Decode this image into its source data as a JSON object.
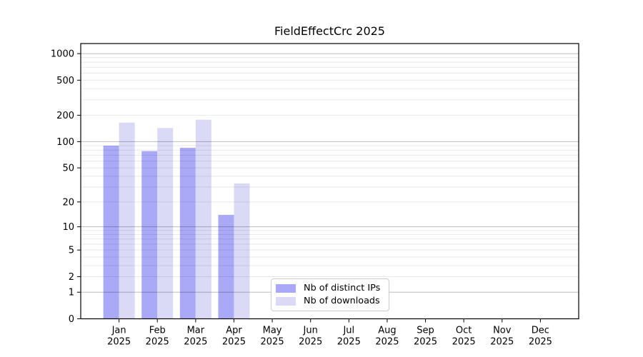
{
  "chart_data": {
    "type": "bar",
    "title": "FieldEffectCrc 2025",
    "categories": [
      {
        "month": "Jan",
        "year": "2025"
      },
      {
        "month": "Feb",
        "year": "2025"
      },
      {
        "month": "Mar",
        "year": "2025"
      },
      {
        "month": "Apr",
        "year": "2025"
      },
      {
        "month": "May",
        "year": "2025"
      },
      {
        "month": "Jun",
        "year": "2025"
      },
      {
        "month": "Jul",
        "year": "2025"
      },
      {
        "month": "Aug",
        "year": "2025"
      },
      {
        "month": "Sep",
        "year": "2025"
      },
      {
        "month": "Oct",
        "year": "2025"
      },
      {
        "month": "Nov",
        "year": "2025"
      },
      {
        "month": "Dec",
        "year": "2025"
      }
    ],
    "series": [
      {
        "name": "Nb of distinct IPs",
        "color": "#a9a9f7",
        "values": [
          90,
          78,
          85,
          14,
          0,
          0,
          0,
          0,
          0,
          0,
          0,
          0
        ]
      },
      {
        "name": "Nb of downloads",
        "color": "#dadaf7",
        "values": [
          165,
          143,
          178,
          33,
          0,
          0,
          0,
          0,
          0,
          0,
          0,
          0
        ]
      }
    ],
    "y_axis": {
      "scale": "log1p",
      "tick_values": [
        0,
        1,
        2,
        5,
        10,
        20,
        50,
        100,
        200,
        500,
        1000
      ],
      "major_gridlines": [
        1,
        10,
        100,
        1000
      ],
      "minor_gridlines": [
        2,
        3,
        4,
        5,
        6,
        7,
        8,
        9,
        20,
        30,
        40,
        50,
        60,
        70,
        80,
        90,
        200,
        300,
        400,
        500,
        600,
        700,
        800,
        900
      ],
      "ylim": [
        0,
        1300
      ]
    },
    "xlabel": "",
    "ylabel": "",
    "grid": true,
    "legend_position": "lower center"
  }
}
